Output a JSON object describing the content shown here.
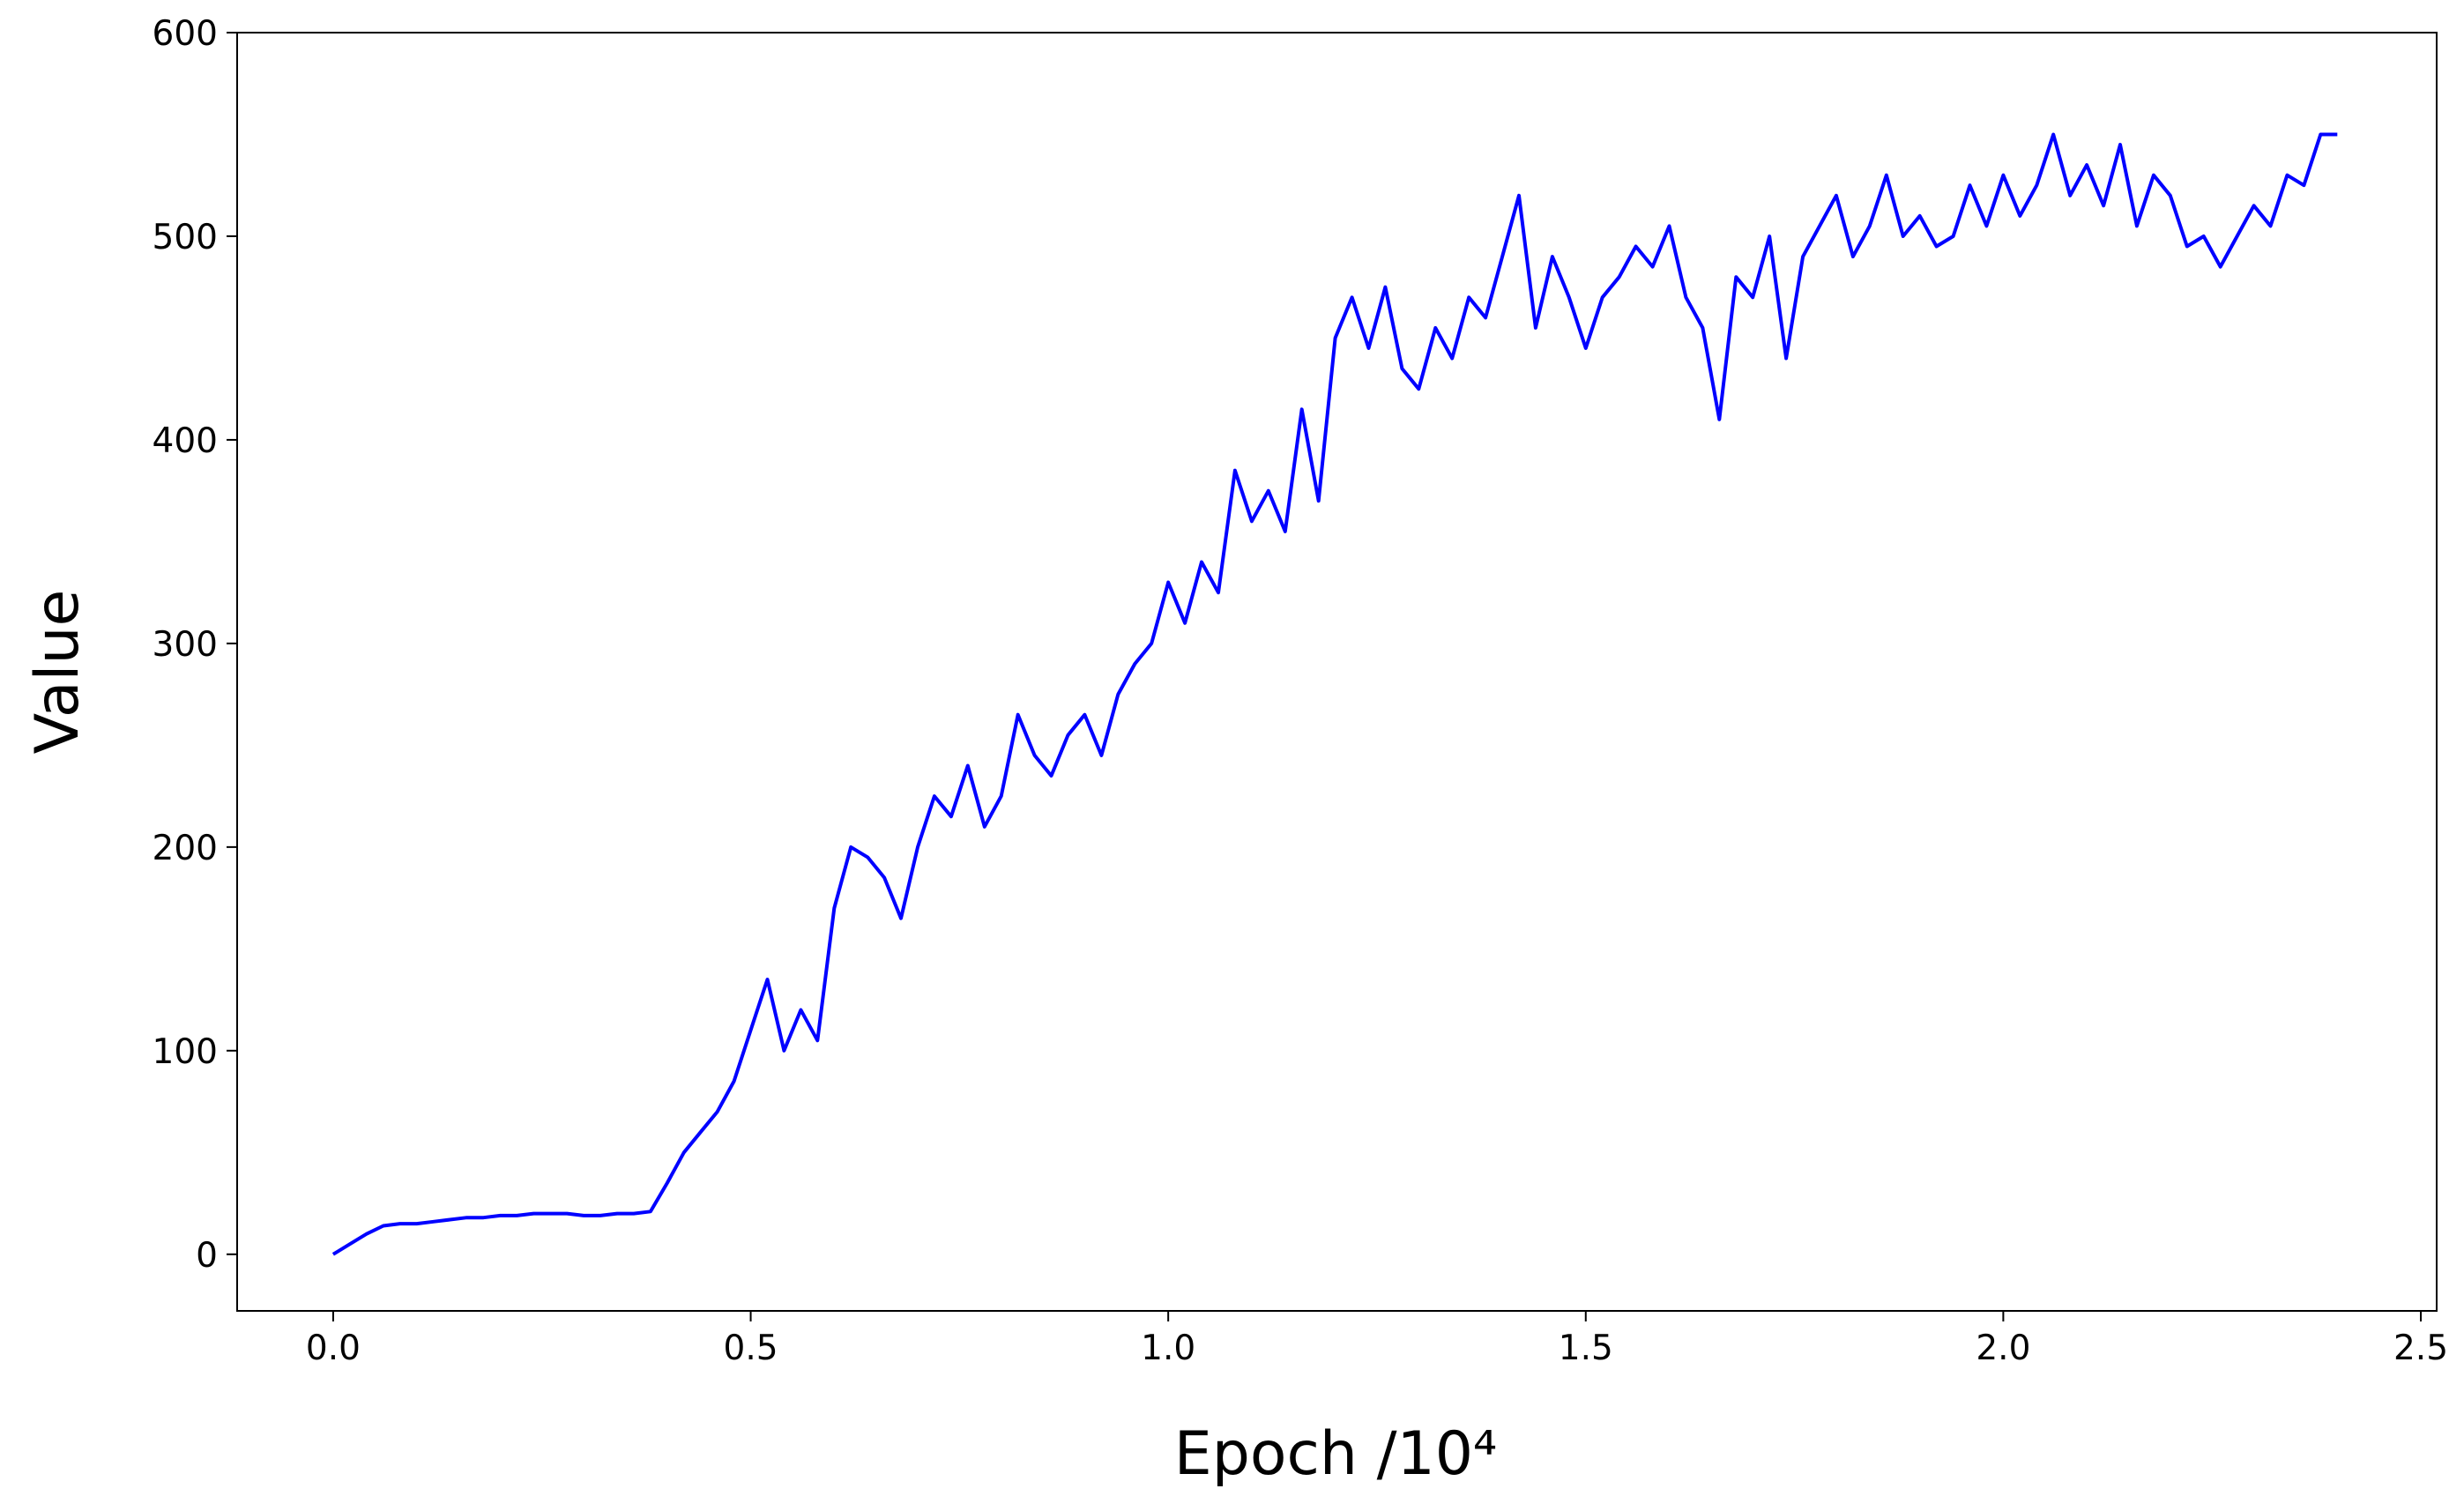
{
  "chart_data": {
    "type": "line",
    "xlabel": "Epoch /10⁴",
    "ylabel": "Value",
    "x": [
      0.0,
      0.02,
      0.04,
      0.06,
      0.08,
      0.1,
      0.12,
      0.14,
      0.16,
      0.18,
      0.2,
      0.22,
      0.24,
      0.26,
      0.28,
      0.3,
      0.32,
      0.34,
      0.36,
      0.38,
      0.4,
      0.42,
      0.44,
      0.46,
      0.48,
      0.5,
      0.52,
      0.54,
      0.56,
      0.58,
      0.6,
      0.62,
      0.64,
      0.66,
      0.68,
      0.7,
      0.72,
      0.74,
      0.76,
      0.78,
      0.8,
      0.82,
      0.84,
      0.86,
      0.88,
      0.9,
      0.92,
      0.94,
      0.96,
      0.98,
      1.0,
      1.02,
      1.04,
      1.06,
      1.08,
      1.1,
      1.12,
      1.14,
      1.16,
      1.18,
      1.2,
      1.22,
      1.24,
      1.26,
      1.28,
      1.3,
      1.32,
      1.34,
      1.36,
      1.38,
      1.4,
      1.42,
      1.44,
      1.46,
      1.48,
      1.5,
      1.52,
      1.54,
      1.56,
      1.58,
      1.6,
      1.62,
      1.64,
      1.66,
      1.68,
      1.7,
      1.72,
      1.74,
      1.76,
      1.78,
      1.8,
      1.82,
      1.84,
      1.86,
      1.88,
      1.9,
      1.92,
      1.94,
      1.96,
      1.98,
      2.0,
      2.02,
      2.04,
      2.06,
      2.08,
      2.1,
      2.12,
      2.14,
      2.16,
      2.18,
      2.2,
      2.22,
      2.24,
      2.26,
      2.28,
      2.3,
      2.32,
      2.34,
      2.36,
      2.38,
      2.4
    ],
    "series": [
      {
        "color": "#0000ff",
        "values": [
          0,
          5,
          10,
          14,
          15,
          15,
          16,
          17,
          18,
          18,
          19,
          19,
          20,
          20,
          20,
          19,
          19,
          20,
          20,
          21,
          35,
          50,
          60,
          70,
          85,
          110,
          135,
          100,
          120,
          105,
          170,
          200,
          195,
          185,
          165,
          200,
          225,
          215,
          240,
          210,
          225,
          265,
          245,
          235,
          255,
          265,
          245,
          275,
          290,
          300,
          330,
          310,
          340,
          325,
          385,
          360,
          375,
          355,
          415,
          370,
          450,
          470,
          445,
          475,
          435,
          425,
          455,
          440,
          470,
          460,
          490,
          520,
          455,
          490,
          470,
          445,
          470,
          480,
          495,
          485,
          505,
          470,
          455,
          410,
          480,
          470,
          500,
          440,
          490,
          505,
          520,
          490,
          505,
          530,
          500,
          510,
          495,
          500,
          525,
          505,
          530,
          510,
          525,
          550,
          520,
          535,
          515,
          545,
          505,
          530,
          520,
          495,
          500,
          485,
          500,
          515,
          505,
          530,
          525,
          550,
          550
        ]
      }
    ],
    "xlim": [
      -0.115,
      2.519
    ],
    "ylim": [
      -27.8,
      600
    ],
    "xticks": [
      {
        "value": 0,
        "label": "0.0"
      },
      0.5,
      {
        "value": 1,
        "label": "1.0"
      },
      1.5,
      {
        "value": 2,
        "label": "2.0"
      },
      2.5
    ],
    "yticks": [
      0,
      100,
      200,
      300,
      400,
      500,
      600
    ],
    "grid": false
  }
}
